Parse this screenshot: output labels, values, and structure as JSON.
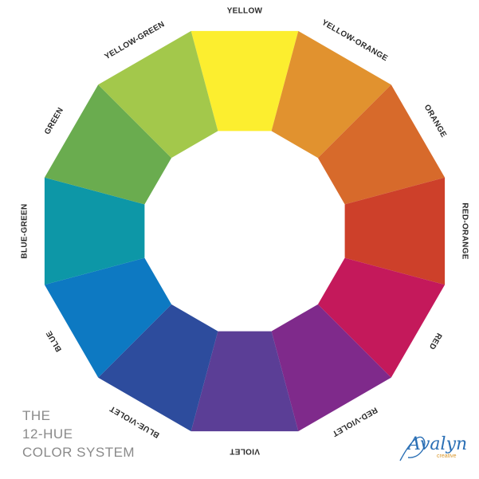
{
  "title_lines": [
    "THE",
    "12-HUE",
    "COLOR SYSTEM"
  ],
  "segments": [
    {
      "label": "YELLOW",
      "color": "#fcee2f"
    },
    {
      "label": "YELLOW-ORANGE",
      "color": "#e1922f"
    },
    {
      "label": "ORANGE",
      "color": "#d76a2b"
    },
    {
      "label": "RED-ORANGE",
      "color": "#cd402a"
    },
    {
      "label": "RED",
      "color": "#c4195b"
    },
    {
      "label": "RED-VIOLET",
      "color": "#7f2a8b"
    },
    {
      "label": "VIOLET",
      "color": "#5b3e96"
    },
    {
      "label": "BLUE-VIOLET",
      "color": "#2d4c9d"
    },
    {
      "label": "BLUE",
      "color": "#0d79c2"
    },
    {
      "label": "BLUE-GREEN",
      "color": "#0d97a7"
    },
    {
      "label": "GREEN",
      "color": "#6aac4f"
    },
    {
      "label": "YELLOW-GREEN",
      "color": "#a3c84b"
    }
  ],
  "logo": {
    "script": "Avalyn",
    "sub": "creative",
    "color": "#2a6fb5",
    "sub_color": "#d8962a"
  }
}
